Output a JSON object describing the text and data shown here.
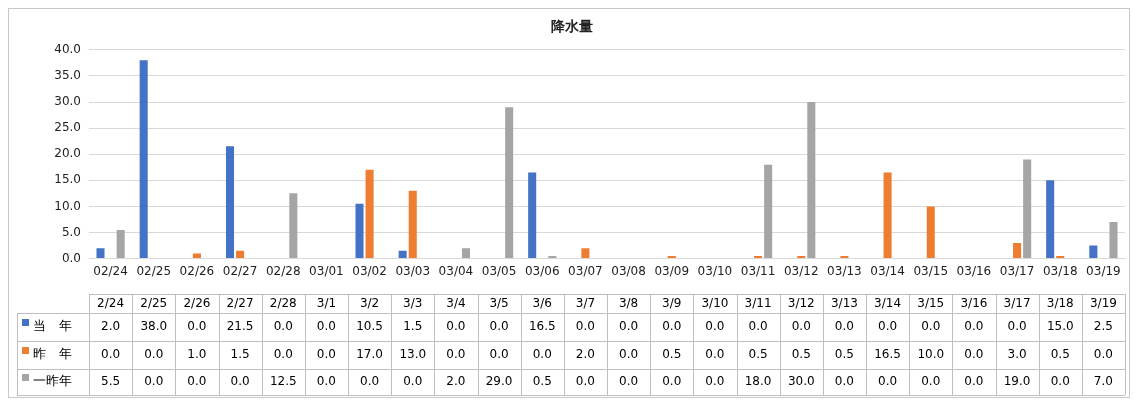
{
  "chart_data": {
    "type": "bar",
    "title": "降水量",
    "categories": [
      "02/24",
      "02/25",
      "02/26",
      "02/27",
      "02/28",
      "03/01",
      "03/02",
      "03/03",
      "03/04",
      "03/05",
      "03/06",
      "03/07",
      "03/08",
      "03/09",
      "03/10",
      "03/11",
      "03/12",
      "03/13",
      "03/14",
      "03/15",
      "03/16",
      "03/17",
      "03/18",
      "03/19"
    ],
    "series": [
      {
        "name": "当　年",
        "color": "#4472c4",
        "values": [
          2.0,
          38.0,
          0.0,
          21.5,
          0.0,
          0.0,
          10.5,
          1.5,
          0.0,
          0.0,
          16.5,
          0.0,
          0.0,
          0.0,
          0.0,
          0.0,
          0.0,
          0.0,
          0.0,
          0.0,
          0.0,
          0.0,
          15.0,
          2.5
        ],
        "value_labels": [
          "2.0",
          "38.0",
          "0.0",
          "21.5",
          "0.0",
          "0.0",
          "10.5",
          "1.5",
          "0.0",
          "0.0",
          "16.5",
          "0.0",
          "0.0",
          "0.0",
          "0.0",
          "0.0",
          "0.0",
          "0.0",
          "0.0",
          "0.0",
          "0.0",
          "0.0",
          "15.0",
          "2.5"
        ]
      },
      {
        "name": "昨　年",
        "color": "#ed7d31",
        "values": [
          0.0,
          0.0,
          1.0,
          1.5,
          0.0,
          0.0,
          17.0,
          13.0,
          0.0,
          0.0,
          0.0,
          2.0,
          0.0,
          0.5,
          0.0,
          0.5,
          0.5,
          0.5,
          16.5,
          10.0,
          0.0,
          3.0,
          0.5,
          0.0
        ],
        "value_labels": [
          "0.0",
          "0.0",
          "1.0",
          "1.5",
          "0.0",
          "0.0",
          "17.0",
          "13.0",
          "0.0",
          "0.0",
          "0.0",
          "2.0",
          "0.0",
          "0.5",
          "0.0",
          "0.5",
          "0.5",
          "0.5",
          "16.5",
          "10.0",
          "0.0",
          "3.0",
          "0.5",
          "0.0"
        ]
      },
      {
        "name": "一昨年",
        "color": "#a5a5a5",
        "values": [
          5.5,
          0.0,
          0.0,
          0.0,
          12.5,
          0.0,
          0.0,
          0.0,
          2.0,
          29.0,
          0.5,
          0.0,
          0.0,
          0.0,
          0.0,
          18.0,
          30.0,
          0.0,
          0.0,
          0.0,
          0.0,
          19.0,
          0.0,
          7.0
        ],
        "value_labels": [
          "5.5",
          "0.0",
          "0.0",
          "0.0",
          "12.5",
          "0.0",
          "0.0",
          "0.0",
          "2.0",
          "29.0",
          "0.5",
          "0.0",
          "0.0",
          "0.0",
          "0.0",
          "18.0",
          "30.0",
          "0.0",
          "0.0",
          "0.0",
          "0.0",
          "19.0",
          "0.0",
          "7.0"
        ]
      }
    ],
    "ylim": [
      0,
      40
    ],
    "yticks": [
      {
        "value": 0,
        "label": "0.0"
      },
      {
        "value": 5,
        "label": "5.0"
      },
      {
        "value": 10,
        "label": "10.0"
      },
      {
        "value": 15,
        "label": "15.0"
      },
      {
        "value": 20,
        "label": "20.0"
      },
      {
        "value": 25,
        "label": "25.0"
      },
      {
        "value": 30,
        "label": "30.0"
      },
      {
        "value": 35,
        "label": "35.0"
      },
      {
        "value": 40,
        "label": "40.0"
      }
    ],
    "grid": "y",
    "legend": "bottom left",
    "annotations": [
      "2/24",
      "2/25",
      "2/26",
      "2/27",
      "2/28",
      "3/1",
      "3/2",
      "3/3",
      "3/4",
      "3/5",
      "3/6",
      "3/7",
      "3/8",
      "3/9",
      "3/10",
      "3/11",
      "3/12",
      "3/13",
      "3/14",
      "3/15",
      "3/16",
      "3/17",
      "3/18",
      "3/19"
    ]
  }
}
